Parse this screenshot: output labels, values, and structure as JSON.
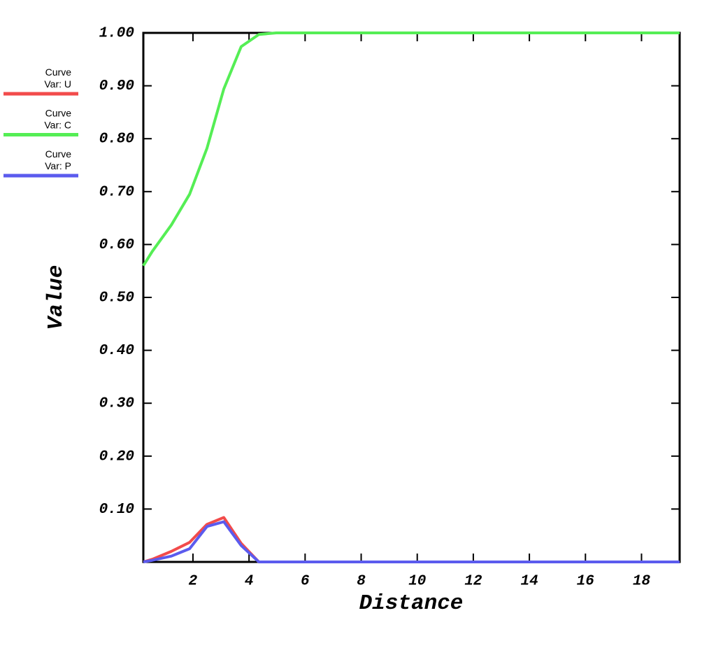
{
  "chart_data": {
    "type": "line",
    "xlabel": "Distance",
    "ylabel": "Value",
    "x": [
      0.23,
      0.55,
      1.23,
      1.88,
      2.5,
      3.1,
      3.72,
      4.35,
      4.97,
      19.36
    ],
    "series": [
      {
        "group": "Curve",
        "name": "Var: U",
        "color": "#f24b4b",
        "values": [
          0,
          0.005,
          0.02,
          0.037,
          0.071,
          0.084,
          0.035,
          0,
          0,
          0
        ]
      },
      {
        "group": "Curve",
        "name": "Var: C",
        "color": "#55ee55",
        "values": [
          0.56,
          0.587,
          0.637,
          0.695,
          0.782,
          0.894,
          0.974,
          0.997,
          1.0,
          1.0
        ]
      },
      {
        "group": "Curve",
        "name": "Var: P",
        "color": "#5b5bee",
        "values": [
          0,
          0.003,
          0.011,
          0.025,
          0.067,
          0.076,
          0.031,
          0,
          0,
          0
        ]
      }
    ],
    "xlim": [
      0.23,
      19.36
    ],
    "ylim": [
      0,
      1
    ],
    "xticks": [
      2,
      4,
      6,
      8,
      10,
      12,
      14,
      16,
      18
    ],
    "yticks": [
      {
        "value": 0.1,
        "label": "0.10"
      },
      {
        "value": 0.2,
        "label": "0.20"
      },
      {
        "value": 0.3,
        "label": "0.30"
      },
      {
        "value": 0.4,
        "label": "0.40"
      },
      {
        "value": 0.5,
        "label": "0.50"
      },
      {
        "value": 0.6,
        "label": "0.60"
      },
      {
        "value": 0.7,
        "label": "0.70"
      },
      {
        "value": 0.8,
        "label": "0.80"
      },
      {
        "value": 0.9,
        "label": "0.90"
      },
      {
        "value": 1,
        "label": "1.00"
      }
    ]
  }
}
